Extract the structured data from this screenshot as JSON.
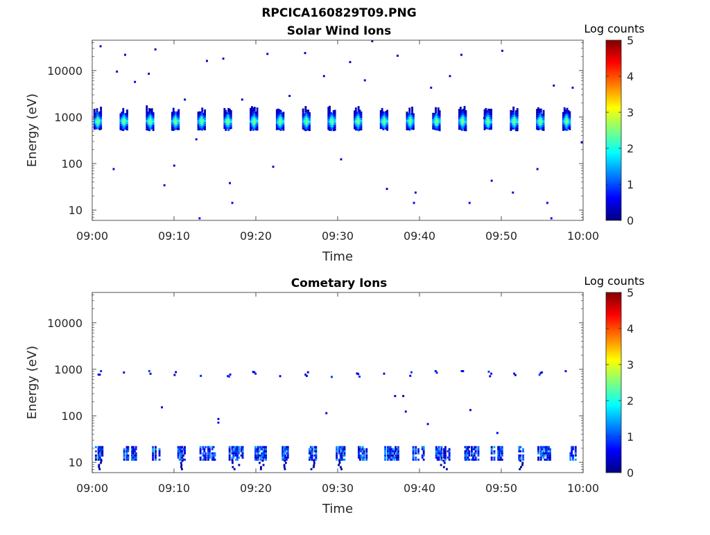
{
  "figure": {
    "title": "RPCICA160829T09.PNG"
  },
  "colorbar": {
    "label": "Log counts",
    "ticks": [
      "0",
      "1",
      "2",
      "3",
      "4",
      "5"
    ],
    "colormap": "jet",
    "colors": [
      "#00007f",
      "#0000ff",
      "#007fff",
      "#00ffff",
      "#7fff7f",
      "#ffff00",
      "#ff7f00",
      "#ff0000",
      "#7f0000"
    ]
  },
  "chart_data": [
    {
      "type": "heatmap",
      "title": "Solar Wind Ions",
      "xlabel": "Time",
      "ylabel": "Energy (eV)",
      "x_ticks": [
        "09:00",
        "09:10",
        "09:20",
        "09:30",
        "09:40",
        "09:50",
        "10:00"
      ],
      "x_range": [
        "09:00",
        "10:00"
      ],
      "y_ticks": [
        "10",
        "100",
        "1000",
        "10000"
      ],
      "y_range": [
        6,
        45000
      ],
      "y_scale": "log",
      "color_range": [
        0,
        5
      ],
      "color_label": "Log counts",
      "bursts": {
        "times": [
          "09:00.6",
          "09:03.8",
          "09:07.0",
          "09:10.1",
          "09:13.3",
          "09:16.5",
          "09:19.7",
          "09:22.9",
          "09:26.1",
          "09:29.2",
          "09:32.4",
          "09:35.6",
          "09:38.8",
          "09:42.0",
          "09:45.2",
          "09:48.3",
          "09:51.5",
          "09:54.7",
          "09:57.9"
        ],
        "energy_center": 850,
        "energy_range": [
          550,
          1800
        ],
        "peak_log_counts": 2.9
      },
      "scatter_points": [
        {
          "t": "09:00.9",
          "e": 35000,
          "c": 0.3
        },
        {
          "t": "09:02.5",
          "e": 80,
          "c": 0.4
        },
        {
          "t": "09:02.9",
          "e": 10000,
          "c": 0.3
        },
        {
          "t": "09:03.9",
          "e": 23000,
          "c": 0.4
        },
        {
          "t": "09:05.1",
          "e": 6000,
          "c": 0.5
        },
        {
          "t": "09:06.8",
          "e": 9000,
          "c": 0.3
        },
        {
          "t": "09:07.6",
          "e": 30000,
          "c": 0.2
        },
        {
          "t": "09:08.7",
          "e": 36,
          "c": 0.5
        },
        {
          "t": "09:09.9",
          "e": 95,
          "c": 0.3
        },
        {
          "t": "09:11.2",
          "e": 2500,
          "c": 0.4
        },
        {
          "t": "09:12.6",
          "e": 350,
          "c": 0.3
        },
        {
          "t": "09:13.0",
          "e": 7,
          "c": 0.5
        },
        {
          "t": "09:13.9",
          "e": 17000,
          "c": 0.3
        },
        {
          "t": "09:15.9",
          "e": 19000,
          "c": 0.4
        },
        {
          "t": "09:16.7",
          "e": 40,
          "c": 0.5
        },
        {
          "t": "09:17.0",
          "e": 15,
          "c": 0.6
        },
        {
          "t": "09:18.2",
          "e": 2500,
          "c": 0.3
        },
        {
          "t": "09:21.3",
          "e": 24000,
          "c": 0.4
        },
        {
          "t": "09:22.0",
          "e": 90,
          "c": 0.3
        },
        {
          "t": "09:24.0",
          "e": 3000,
          "c": 0.3
        },
        {
          "t": "09:25.9",
          "e": 25000,
          "c": 0.3
        },
        {
          "t": "09:28.2",
          "e": 8000,
          "c": 0.4
        },
        {
          "t": "09:30.3",
          "e": 130,
          "c": 0.3
        },
        {
          "t": "09:31.4",
          "e": 16000,
          "c": 0.3
        },
        {
          "t": "09:33.2",
          "e": 6500,
          "c": 0.5
        },
        {
          "t": "09:34.1",
          "e": 45000,
          "c": 0.3
        },
        {
          "t": "09:35.9",
          "e": 30,
          "c": 0.4
        },
        {
          "t": "09:37.2",
          "e": 22000,
          "c": 0.3
        },
        {
          "t": "09:39.2",
          "e": 15,
          "c": 0.5
        },
        {
          "t": "09:39.4",
          "e": 25,
          "c": 0.4
        },
        {
          "t": "09:41.3",
          "e": 4500,
          "c": 0.5
        },
        {
          "t": "09:43.6",
          "e": 8000,
          "c": 0.4
        },
        {
          "t": "09:45.0",
          "e": 23000,
          "c": 0.3
        },
        {
          "t": "09:46.0",
          "e": 15,
          "c": 0.6
        },
        {
          "t": "09:47.8",
          "e": 1000,
          "c": 0.3
        },
        {
          "t": "09:48.7",
          "e": 45,
          "c": 0.4
        },
        {
          "t": "09:50.0",
          "e": 28000,
          "c": 0.3
        },
        {
          "t": "09:51.3",
          "e": 25,
          "c": 0.4
        },
        {
          "t": "09:54.3",
          "e": 80,
          "c": 0.3
        },
        {
          "t": "09:55.5",
          "e": 15,
          "c": 0.6
        },
        {
          "t": "09:56.0",
          "e": 7,
          "c": 0.6
        },
        {
          "t": "09:56.3",
          "e": 5000,
          "c": 0.3
        },
        {
          "t": "09:58.6",
          "e": 4500,
          "c": 0.4
        },
        {
          "t": "09:59.7",
          "e": 300,
          "c": 0.3
        }
      ]
    },
    {
      "type": "heatmap",
      "title": "Cometary Ions",
      "xlabel": "Time",
      "ylabel": "Energy (eV)",
      "x_ticks": [
        "09:00",
        "09:10",
        "09:20",
        "09:30",
        "09:40",
        "09:50",
        "10:00"
      ],
      "x_range": [
        "09:00",
        "10:00"
      ],
      "y_ticks": [
        "10",
        "100",
        "1000",
        "10000"
      ],
      "y_range": [
        6,
        45000
      ],
      "y_scale": "log",
      "color_range": [
        0,
        5
      ],
      "color_label": "Log counts",
      "low_energy_band": {
        "times": [
          "09:00.8",
          "09:04.5",
          "09:07.8",
          "09:10.8",
          "09:14.0",
          "09:17.4",
          "09:20.5",
          "09:23.5",
          "09:26.8",
          "09:30.2",
          "09:33.0",
          "09:36.5",
          "09:39.8",
          "09:42.8",
          "09:46.2",
          "09:49.4",
          "09:52.3",
          "09:55.2",
          "09:58.6"
        ],
        "energy_range": [
          12,
          24
        ],
        "peak_log_counts": 1.3
      },
      "high_energy_band": {
        "times": [
          "09:00.8",
          "09:03.9",
          "09:07.0",
          "09:10.1",
          "09:13.3",
          "09:16.6",
          "09:19.7",
          "09:23.0",
          "09:26.1",
          "09:29.3",
          "09:32.4",
          "09:35.7",
          "09:38.9",
          "09:42.0",
          "09:45.2",
          "09:48.5",
          "09:51.6",
          "09:54.7",
          "09:57.9"
        ],
        "energy": 850,
        "peak_log_counts": 0.7
      },
      "scatter_points": [
        {
          "t": "09:08.4",
          "e": 160,
          "c": 0.4
        },
        {
          "t": "09:15.3",
          "e": 90,
          "c": 0.6
        },
        {
          "t": "09:15.3",
          "e": 75,
          "c": 0.6
        },
        {
          "t": "09:28.5",
          "e": 120,
          "c": 0.4
        },
        {
          "t": "09:36.9",
          "e": 280,
          "c": 0.4
        },
        {
          "t": "09:37.9",
          "e": 280,
          "c": 0.3
        },
        {
          "t": "09:38.2",
          "e": 130,
          "c": 0.4
        },
        {
          "t": "09:40.9",
          "e": 70,
          "c": 0.4
        },
        {
          "t": "09:46.1",
          "e": 140,
          "c": 0.4
        },
        {
          "t": "09:49.4",
          "e": 45,
          "c": 0.5
        }
      ]
    }
  ]
}
